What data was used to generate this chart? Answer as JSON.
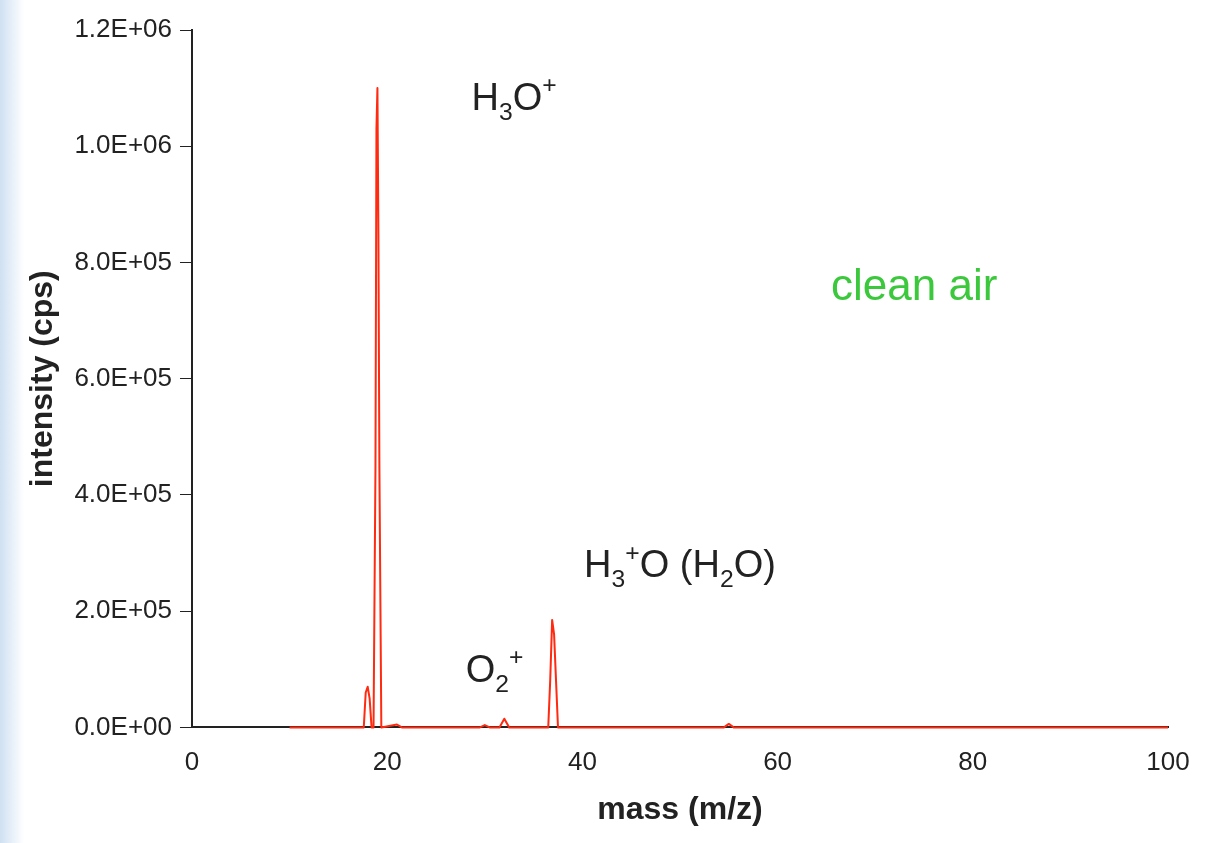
{
  "chart_data": {
    "type": "line",
    "xlabel": "mass (m/z)",
    "ylabel": "intensity (cps)",
    "series": [
      {
        "color": "#ff2a10",
        "x": [
          10,
          17.6,
          17.8,
          18.0,
          18.2,
          18.4,
          18.6,
          18.8,
          18.9,
          19.0,
          19.1,
          19.2,
          19.4,
          21,
          21.5,
          29.5,
          30,
          30.5,
          31.5,
          32,
          32.5,
          36.5,
          36.7,
          36.9,
          37.1,
          37.3,
          37.5,
          54.5,
          55,
          55.5,
          100
        ],
        "values": [
          0,
          0,
          60000,
          70000,
          50000,
          0,
          0,
          450000,
          1030000,
          1100000,
          850000,
          450000,
          0,
          5000,
          0,
          0,
          4000,
          0,
          0,
          15000,
          0,
          0,
          80000,
          185000,
          160000,
          80000,
          0,
          0,
          6000,
          0,
          0
        ]
      }
    ],
    "xlim": [
      0,
      100
    ],
    "xticks": [
      0,
      20,
      40,
      60,
      80,
      100
    ],
    "ylim": [
      0,
      1200000
    ],
    "yticks": [
      {
        "value": 0,
        "label": "0.0E+00"
      },
      {
        "value": 200000,
        "label": "2.0E+05"
      },
      {
        "value": 400000,
        "label": "4.0E+05"
      },
      {
        "value": 600000,
        "label": "6.0E+05"
      },
      {
        "value": 800000,
        "label": "8.0E+05"
      },
      {
        "value": 1000000,
        "label": "1.0E+06"
      },
      {
        "value": 1200000,
        "label": "1.2E+06"
      }
    ],
    "grid": false,
    "legend": false,
    "marker": "none",
    "line_style": "solid",
    "annotations": [
      "H$_{3}$O$^{+}$",
      "O$_{2}$$^{+}$",
      "H$_{3}$$^{+}$O (H$_{2}$O)",
      "clean air"
    ]
  }
}
